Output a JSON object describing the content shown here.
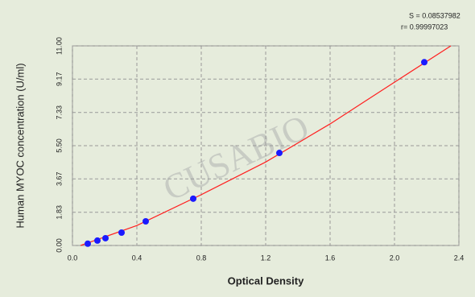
{
  "chart_data": {
    "type": "scatter",
    "x_label": "Optical Density",
    "y_label": "Human MYOC concentration (U/ml)",
    "annotations": [
      "S = 0.08537982",
      "r= 0.99997023"
    ],
    "watermark": "CUSABIO",
    "xlim": [
      0,
      2.4
    ],
    "ylim": [
      0,
      11
    ],
    "xticks": [
      {
        "value": 0,
        "label": "0.0"
      },
      0.4,
      {
        "value": 0.8,
        "label": "0.8"
      },
      1.2,
      1.6,
      {
        "value": 2,
        "label": "2.0"
      },
      2.4
    ],
    "yticks": [
      {
        "value": 0,
        "label": "0.00"
      },
      1.83,
      3.67,
      {
        "value": 5.5,
        "label": "5.50"
      },
      7.33,
      9.17,
      {
        "value": 11,
        "label": "11.00"
      }
    ],
    "grid": true,
    "series": [
      {
        "color": "#1a1aff",
        "x": [
          0.095,
          0.155,
          0.205,
          0.305,
          0.455,
          0.75,
          1.285,
          2.185
        ],
        "values": [
          0.1,
          0.27,
          0.4,
          0.71,
          1.33,
          2.58,
          5.1,
          10.1
        ]
      }
    ],
    "fit": {
      "color": "#ff2020",
      "x": [
        0.05,
        0.4,
        0.8,
        1.2,
        1.6,
        2.0,
        2.35
      ],
      "values": [
        0,
        1.1,
        2.8,
        4.6,
        6.7,
        9.0,
        11.0
      ]
    }
  }
}
